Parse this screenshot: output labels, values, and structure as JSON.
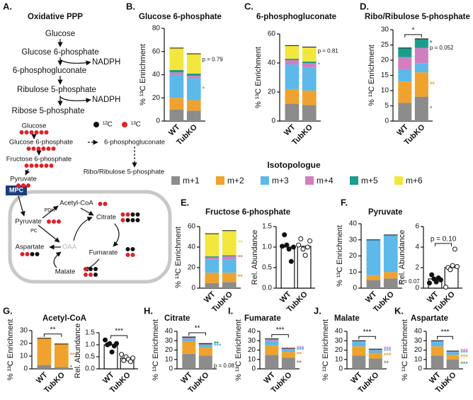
{
  "pathway": {
    "label": "A.",
    "title": "Oxidative  PPP",
    "steps": [
      "Glucose",
      "Glucose 6-phosphate",
      "6-phosphogluconate",
      "Ribulose 5-phosphate",
      "Ribose 5-phosphate"
    ],
    "cofactors": [
      "NADPH",
      "NADPH"
    ]
  },
  "carbon_map": {
    "legend": [
      "¹²C",
      "¹³C"
    ],
    "nodes": [
      "Glucose",
      "Glucose 6-phosphate",
      "6-phosphogluconate",
      "Fructose 6-phosphate",
      "Ribo/Ribulose 5-phosphate",
      "Pyruvate",
      "MPC",
      "PDH",
      "Acetyl-CoA",
      "Pyruvate",
      "PC",
      "Citrate",
      "OAA",
      "Aspartate",
      "Fumarate",
      "Malate"
    ]
  },
  "legend": {
    "title": "Isotopologue",
    "items": [
      {
        "name": "m+1",
        "color": "#8c8c8c"
      },
      {
        "name": "m+2",
        "color": "#f0a22e"
      },
      {
        "name": "m+3",
        "color": "#5cb9e9"
      },
      {
        "name": "m+4",
        "color": "#d27fc0"
      },
      {
        "name": "m+5",
        "color": "#1a9d8c"
      },
      {
        "name": "m+6",
        "color": "#f3e63d"
      }
    ]
  },
  "chart_data": [
    {
      "type": "stacked_bar",
      "label": "B.",
      "title": "Glucose 6-phosphate",
      "ylabel": "% ¹³C Enrichment",
      "categories": [
        "WT",
        "TubKO"
      ],
      "ylim": [
        0,
        80
      ],
      "yticks": [
        0,
        20,
        40,
        60,
        80
      ],
      "pvalue": "p = 0.79",
      "series": [
        {
          "values": [
            10,
            9
          ]
        },
        {
          "values": [
            10,
            9
          ]
        },
        {
          "values": [
            20,
            19
          ],
          "sig": "*"
        },
        {
          "values": [
            2,
            2
          ]
        },
        {
          "values": [
            2,
            2
          ]
        },
        {
          "values": [
            19,
            17
          ]
        }
      ]
    },
    {
      "type": "stacked_bar",
      "label": "C.",
      "title": "6-phosphogluconate",
      "ylabel": "% ¹³C Enrichment",
      "categories": [
        "WT",
        "TubKO"
      ],
      "ylim": [
        0,
        60
      ],
      "yticks": [
        0,
        20,
        40,
        60
      ],
      "pvalue": "p = 0.81",
      "series": [
        {
          "values": [
            12,
            11
          ]
        },
        {
          "values": [
            10,
            10
          ]
        },
        {
          "values": [
            17,
            16
          ]
        },
        {
          "values": [
            3,
            3
          ],
          "sig": "*"
        },
        {
          "values": [
            1,
            1
          ]
        },
        {
          "values": [
            9,
            10
          ]
        }
      ]
    },
    {
      "type": "stacked_bar",
      "label": "D.",
      "title": "Ribo/Ribulose 5-phosphate",
      "ylabel": "% ¹³C Enrichment",
      "categories": [
        "WT",
        "TubKO"
      ],
      "ylim": [
        0,
        30
      ],
      "yticks": [
        0,
        5,
        10,
        15,
        20,
        25,
        30
      ],
      "pvalue": "p = 0.052",
      "bracket": "*",
      "series": [
        {
          "values": [
            6,
            8
          ],
          "sig": "*"
        },
        {
          "values": [
            7,
            8
          ],
          "sig": "**"
        },
        {
          "values": [
            4,
            3
          ]
        },
        {
          "values": [
            4,
            5
          ]
        },
        {
          "values": [
            3,
            3
          ],
          "sig": "*"
        }
      ]
    },
    {
      "type": "stacked_bar",
      "label": "E.",
      "title": "Fructose 6-phosphate",
      "ylabel": "% ¹³C Enrichment",
      "categories": [
        "WT",
        "TubKO"
      ],
      "ylim": [
        0,
        60
      ],
      "yticks": [
        0,
        20,
        40,
        60
      ],
      "series": [
        {
          "values": [
            5,
            6
          ]
        },
        {
          "values": [
            10,
            9
          ],
          "sig": "**"
        },
        {
          "values": [
            13,
            13
          ]
        },
        {
          "values": [
            2,
            3
          ],
          "sig": "**"
        },
        {
          "values": [
            1,
            1
          ]
        },
        {
          "values": [
            22,
            24
          ],
          "sig": "**"
        }
      ]
    },
    {
      "type": "dot_bar",
      "ylabel": "Rel. Abundance",
      "categories": [
        "WT",
        "TubKO"
      ],
      "ylim": [
        0,
        1.5
      ],
      "yticks": [
        {
          "value": 0,
          "label": "0.0"
        },
        0.5,
        {
          "value": 1,
          "label": "1.0"
        },
        1.5
      ],
      "values": [
        1.0,
        1.02
      ],
      "points": [
        [
          1.02,
          1.3,
          1.05,
          0.95,
          0.65,
          1.0
        ],
        [
          1.05,
          1.2,
          0.95,
          0.8,
          1.0,
          1.15
        ]
      ]
    },
    {
      "type": "stacked_bar",
      "label": "F.",
      "title": "Pyruvate",
      "ylabel": "% ¹³C Enrichment",
      "categories": [
        "WT",
        "TubKO"
      ],
      "ylim": [
        0,
        40
      ],
      "yticks": [
        0,
        10,
        20,
        30,
        40
      ],
      "pvalue": "p = 0.07",
      "series": [
        {
          "values": [
            5,
            6
          ]
        },
        {
          "values": [
            3,
            4
          ]
        },
        {
          "values": [
            22,
            23
          ]
        }
      ]
    },
    {
      "type": "dot_bar",
      "ylabel": "Rel. Abundance",
      "categories": [
        "WT",
        "TubKO"
      ],
      "ylim": [
        0,
        6
      ],
      "yticks": [
        0,
        2,
        4,
        6
      ],
      "bracket": "p = 0.10",
      "values": [
        0.9,
        2.0
      ],
      "points": [
        [
          0.5,
          1.3,
          0.9,
          0.6,
          1.0,
          0.8
        ],
        [
          0.1,
          2.0,
          1.8,
          2.2,
          3.8,
          2.1
        ]
      ]
    },
    {
      "type": "stacked_bar",
      "label": "G.",
      "title": "Acetyl-CoA",
      "ylabel": "% ¹³C Enrichment",
      "categories": [
        "WT",
        "TubKO"
      ],
      "ylim": [
        0,
        30
      ],
      "yticks": [
        0,
        10,
        20,
        30
      ],
      "bracket": "**",
      "series": [
        {
          "values": [
            3,
            1.5
          ],
          "sig": "*"
        },
        {
          "values": [
            21,
            18
          ],
          "sig": "***"
        }
      ]
    },
    {
      "type": "dot_bar",
      "ylabel": "Rel. Abundance",
      "categories": [
        "WT",
        "TubKO"
      ],
      "ylim": [
        0,
        1.5
      ],
      "yticks": [
        {
          "value": 0,
          "label": "0.0"
        },
        0.5,
        {
          "value": 1,
          "label": "1.0"
        },
        1.5
      ],
      "bracket": "***",
      "values": [
        1.0,
        0.45
      ],
      "points": [
        [
          1.2,
          1.0,
          1.05,
          0.7,
          0.95,
          1.05
        ],
        [
          0.6,
          0.35,
          0.5,
          0.4,
          0.3,
          0.45
        ]
      ]
    },
    {
      "type": "stacked_bar",
      "label": "H.",
      "title": "Citrate",
      "ylabel": "% ¹³C Enrichment",
      "categories": [
        "WT",
        "TubKO"
      ],
      "ylim": [
        0,
        40
      ],
      "yticks": [
        0,
        10,
        20,
        30,
        40
      ],
      "bracket": "**",
      "pvalue": "p = 0.08",
      "series": [
        {
          "values": [
            16,
            14
          ]
        },
        {
          "values": [
            13,
            9
          ]
        },
        {
          "values": [
            3,
            2
          ],
          "sig": "***"
        },
        {
          "values": [
            1,
            1
          ]
        },
        {
          "values": [
            1,
            1
          ],
          "sig": "**"
        }
      ]
    },
    {
      "type": "stacked_bar",
      "label": "I.",
      "title": "Fumarate",
      "ylabel": "% ¹³C Enrichment",
      "categories": [
        "WT",
        "TubKO"
      ],
      "ylim": [
        0,
        40
      ],
      "yticks": [
        0,
        10,
        20,
        30,
        40
      ],
      "bracket": "***",
      "series": [
        {
          "values": [
            15,
            12
          ],
          "sig": "**"
        },
        {
          "values": [
            10,
            6
          ],
          "sig": "**"
        },
        {
          "values": [
            5,
            3
          ],
          "sig": "***"
        },
        {
          "values": [
            2,
            1
          ],
          "sig": "***"
        }
      ]
    },
    {
      "type": "stacked_bar",
      "label": "J.",
      "title": "Malate",
      "ylabel": "% ¹³C Enrichment",
      "categories": [
        "WT",
        "TubKO"
      ],
      "ylim": [
        0,
        40
      ],
      "yticks": [
        0,
        10,
        20,
        30,
        40
      ],
      "bracket": "***",
      "series": [
        {
          "values": [
            14,
            11
          ],
          "sig": "**"
        },
        {
          "values": [
            10,
            6
          ],
          "sig": "***"
        },
        {
          "values": [
            5,
            3
          ],
          "sig": "***"
        },
        {
          "values": [
            1,
            1
          ],
          "sig": "***"
        }
      ]
    },
    {
      "type": "stacked_bar",
      "label": "K.",
      "title": "Aspartate",
      "ylabel": "% ¹³C Enrichment",
      "categories": [
        "WT",
        "TubKO"
      ],
      "ylim": [
        0,
        40
      ],
      "yticks": [
        0,
        10,
        20,
        30,
        40
      ],
      "bracket": "***",
      "series": [
        {
          "values": [
            14,
            10
          ],
          "sig": "***"
        },
        {
          "values": [
            10,
            5
          ],
          "sig": "***"
        },
        {
          "values": [
            5,
            3
          ],
          "sig": "***"
        },
        {
          "values": [
            1,
            1
          ],
          "sig": "***"
        }
      ]
    }
  ]
}
